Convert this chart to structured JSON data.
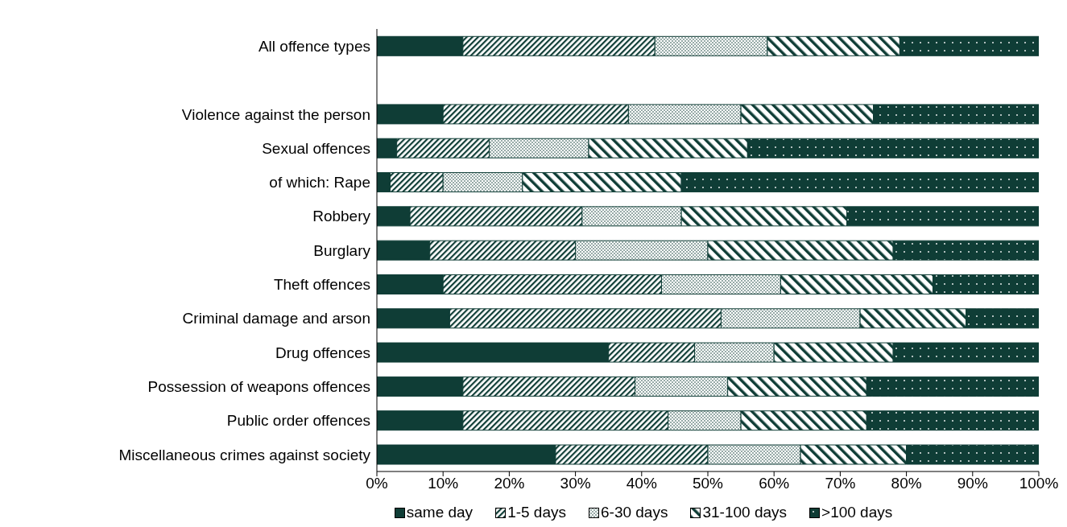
{
  "chart_data": {
    "type": "bar",
    "orientation": "horizontal",
    "stacked": true,
    "categories": [
      "All offence types",
      null,
      "Violence against the person",
      "Sexual offences",
      "of which: Rape",
      "Robbery",
      "Burglary",
      "Theft offences",
      "Criminal damage and arson",
      "Drug offences",
      "Possession of weapons offences",
      "Public order offences",
      "Miscellaneous crimes against society"
    ],
    "series": [
      {
        "name": "same day",
        "color": "#0f3d36",
        "values": [
          13,
          null,
          10,
          3,
          2,
          5,
          8,
          10,
          11,
          35,
          13,
          13,
          27
        ]
      },
      {
        "name": "1-5 days",
        "color": "#0f3d36",
        "values": [
          29,
          null,
          28,
          14,
          8,
          26,
          22,
          33,
          41,
          13,
          26,
          31,
          23
        ]
      },
      {
        "name": "6-30 days",
        "color": "#0f3d36",
        "values": [
          17,
          null,
          17,
          15,
          12,
          15,
          20,
          18,
          21,
          12,
          14,
          11,
          14
        ]
      },
      {
        "name": "31-100 days",
        "color": "#0f3d36",
        "values": [
          20,
          null,
          20,
          24,
          24,
          25,
          28,
          23,
          16,
          18,
          21,
          19,
          16
        ]
      },
      {
        "name": ">100 days",
        "color": "#0f3d36",
        "values": [
          21,
          null,
          25,
          44,
          54,
          29,
          22,
          16,
          11,
          22,
          26,
          26,
          20
        ]
      }
    ],
    "xlim": [
      0,
      100
    ],
    "xticks": [
      {
        "value": 0,
        "label": "0%"
      },
      {
        "value": 10,
        "label": "10%"
      },
      {
        "value": 20,
        "label": "20%"
      },
      {
        "value": 30,
        "label": "30%"
      },
      {
        "value": 40,
        "label": "40%"
      },
      {
        "value": 50,
        "label": "50%"
      },
      {
        "value": 60,
        "label": "60%"
      },
      {
        "value": 70,
        "label": "70%"
      },
      {
        "value": 80,
        "label": "80%"
      },
      {
        "value": 90,
        "label": "90%"
      },
      {
        "value": 100,
        "label": "100%"
      }
    ],
    "grid": false,
    "legend": "bottom"
  }
}
